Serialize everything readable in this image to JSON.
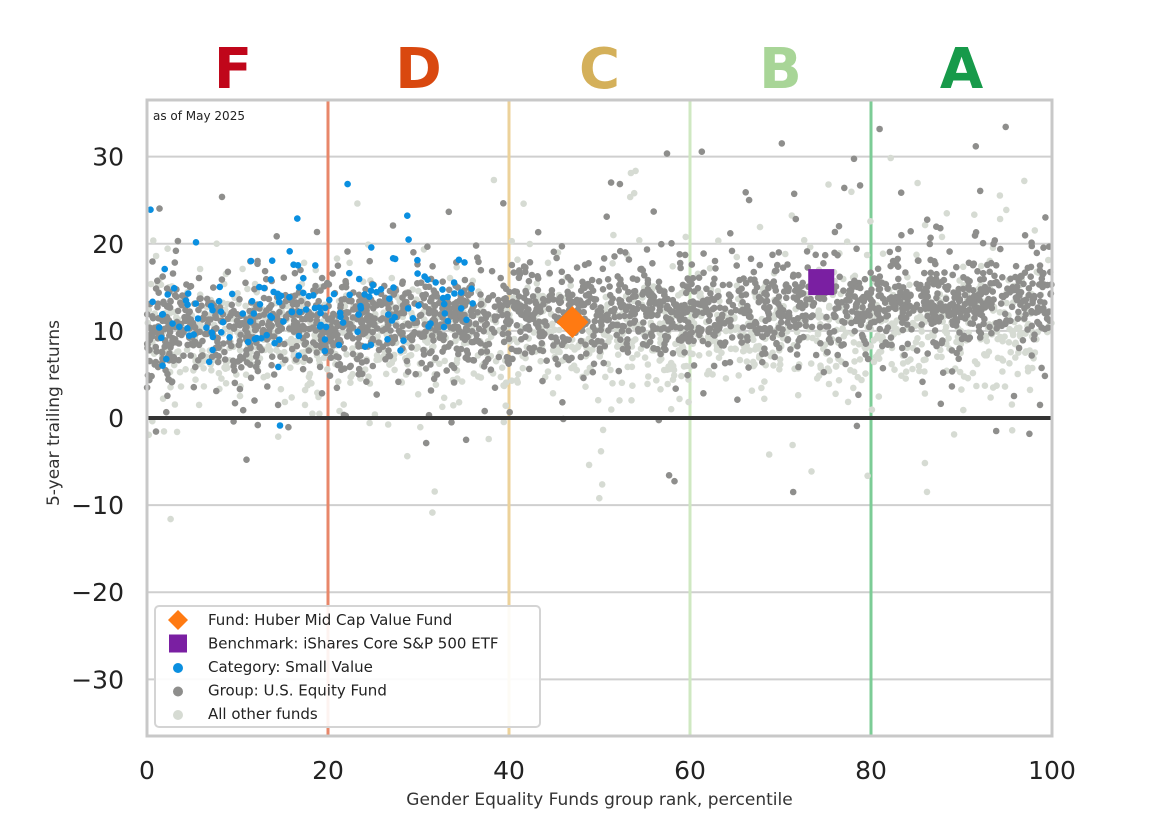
{
  "chart_data": {
    "type": "scatter",
    "note": "as of May 2025",
    "xlabel": "Gender Equality Funds group rank, percentile",
    "ylabel": "5-year trailing returns",
    "xlim": [
      0,
      100
    ],
    "ylim": [
      -36.5,
      36.5
    ],
    "x_ticks": [
      0,
      20,
      40,
      60,
      80,
      100
    ],
    "y_ticks": [
      30,
      20,
      10,
      0,
      -10,
      -20,
      -30
    ],
    "y_tick_labels": [
      "30",
      "20",
      "10",
      "0",
      "−10",
      "−20",
      "−30"
    ],
    "grid": "horizontal",
    "grade_bands": [
      {
        "label": "F",
        "center": 9.5,
        "color": "#c0061a"
      },
      {
        "label": "D",
        "center": 30,
        "color": "#d9480f"
      },
      {
        "label": "C",
        "center": 50,
        "color": "#d4b05a"
      },
      {
        "label": "B",
        "center": 70,
        "color": "#a8d597"
      },
      {
        "label": "A",
        "center": 90,
        "color": "#179a4a"
      }
    ],
    "band_boundaries": [
      {
        "x": 20,
        "color": "#e8876a"
      },
      {
        "x": 40,
        "color": "#ecd29a"
      },
      {
        "x": 60,
        "color": "#cfe8c2"
      },
      {
        "x": 80,
        "color": "#7ccc96"
      }
    ],
    "series": [
      {
        "name": "Fund: Huber Mid Cap Value Fund",
        "marker": "diamond",
        "color": "#ff7a12",
        "points": [
          [
            47,
            11.0
          ]
        ]
      },
      {
        "name": "Benchmark: iShares Core S&P 500 ETF",
        "marker": "square",
        "color": "#7a1fa2",
        "points": [
          [
            74.5,
            15.6
          ]
        ]
      },
      {
        "name": "Category: Small Value",
        "marker": "dot",
        "color": "#0a8fe0"
      },
      {
        "name": "Group: U.S. Equity Fund",
        "marker": "dot",
        "color": "#8e8e8c"
      },
      {
        "name": "All other funds",
        "marker": "dot",
        "color": "#d6dbd3"
      }
    ],
    "distribution": {
      "all_other": {
        "count": 1400,
        "x_range": [
          0,
          100
        ],
        "center_start": 9.0,
        "center_end": 10.5,
        "spread": 3.2
      },
      "group": {
        "count": 2200,
        "x_range": [
          0,
          100
        ],
        "center_start": 10.0,
        "center_end": 13.8,
        "spread": 2.6
      },
      "category": {
        "count": 150,
        "x_range": [
          0,
          36
        ],
        "center_start": 12.0,
        "center_end": 14.0,
        "spread": 2.8
      }
    },
    "legend_position": "lower-left"
  }
}
